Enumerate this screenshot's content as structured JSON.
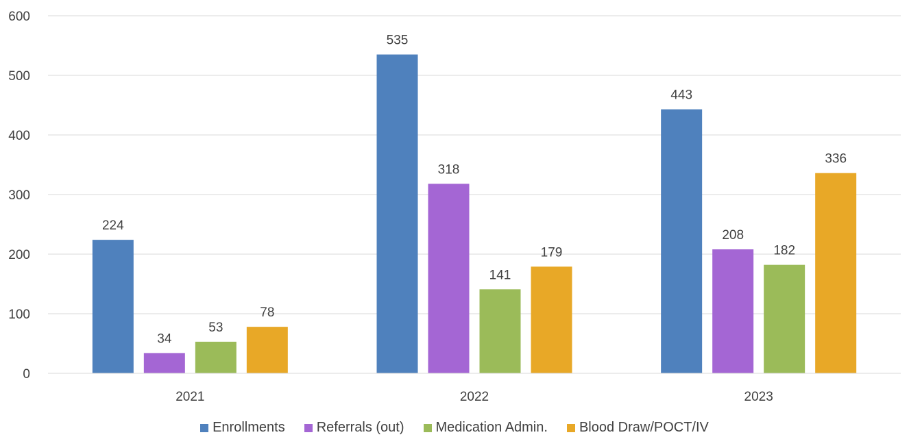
{
  "chart_data": {
    "type": "bar",
    "categories": [
      "2021",
      "2022",
      "2023"
    ],
    "series": [
      {
        "name": "Enrollments",
        "values": [
          224,
          535,
          443
        ],
        "color": "#4f81bd"
      },
      {
        "name": "Referrals (out)",
        "values": [
          34,
          318,
          208
        ],
        "color": "#a466d4"
      },
      {
        "name": "Medication Admin.",
        "values": [
          53,
          141,
          182
        ],
        "color": "#9bbb59"
      },
      {
        "name": "Blood Draw/POCT/IV",
        "values": [
          78,
          179,
          336
        ],
        "color": "#e8a827"
      }
    ],
    "y_ticks": [
      "0",
      "100",
      "200",
      "300",
      "400",
      "500",
      "600"
    ],
    "ylim": [
      0,
      600
    ],
    "grid": true,
    "legend_position": "bottom",
    "data_labels": true,
    "title": "",
    "xlabel": "",
    "ylabel": ""
  }
}
